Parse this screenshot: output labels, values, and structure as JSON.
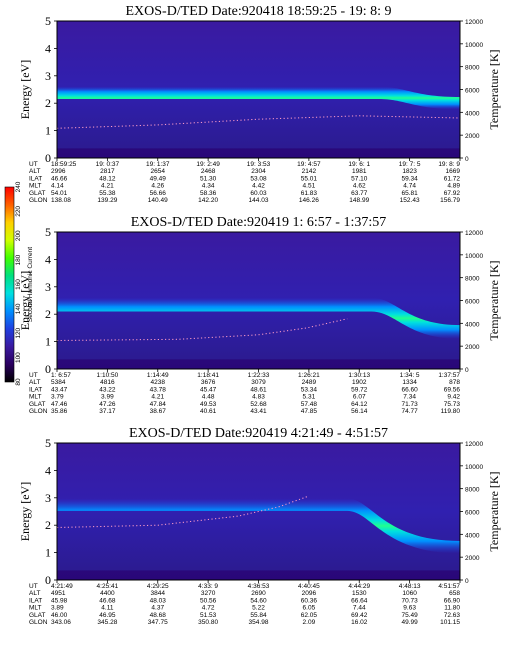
{
  "chart_data": [
    {
      "type": "heatmap",
      "title": "EXOS-D/TED   Date:920418   18:59:25 - 19: 8: 9",
      "ylabel": "Energy [eV]",
      "y2label": "Temperature [K]",
      "yticks": [
        "0",
        "1",
        "2",
        "3",
        "4",
        "5"
      ],
      "y2ticks": [
        "0",
        "2000",
        "4000",
        "6000",
        "8000",
        "10000",
        "12000"
      ],
      "ylim": [
        0,
        5
      ],
      "y2lim": [
        0,
        12000
      ],
      "row_labels": [
        "UT",
        "ALT",
        "ILAT",
        "MLT",
        "GLAT",
        "GLON"
      ],
      "columns": [
        [
          "18:59:25",
          "2996",
          "46.66",
          "4.14",
          "54.01",
          "138.08"
        ],
        [
          "19: 0:37",
          "2817",
          "48.12",
          "4.21",
          "55.38",
          "139.29"
        ],
        [
          "19: 1:37",
          "2654",
          "49.49",
          "4.26",
          "56.66",
          "140.49"
        ],
        [
          "19: 2:49",
          "2468",
          "51.30",
          "4.34",
          "58.36",
          "142.20"
        ],
        [
          "19: 3:53",
          "2304",
          "53.08",
          "4.42",
          "60.03",
          "144.03"
        ],
        [
          "19: 4:57",
          "2142",
          "55.01",
          "4.51",
          "61.83",
          "146.26"
        ],
        [
          "19: 6: 1",
          "1981",
          "57.10",
          "4.62",
          "63.77",
          "148.99"
        ],
        [
          "19: 7: 5",
          "1823",
          "59.34",
          "4.74",
          "65.81",
          "152.43"
        ],
        [
          "19: 8: 9",
          "1669",
          "61.72",
          "4.89",
          "67.92",
          "156.79"
        ]
      ],
      "band": {
        "center_ev": 2.38,
        "width_ev": 0.45,
        "drop_from": 0.8,
        "low_center_ev": 2.0
      },
      "temperature_curve": [
        [
          0.0,
          2600
        ],
        [
          0.25,
          2900
        ],
        [
          0.5,
          3400
        ],
        [
          0.75,
          3700
        ],
        [
          1.0,
          3500
        ]
      ]
    },
    {
      "type": "heatmap",
      "title": "EXOS-D/TED   Date:920419   1: 6:57 - 1:37:57",
      "ylabel": "Energy [eV]",
      "y2label": "Temperature [K]",
      "yticks": [
        "0",
        "1",
        "2",
        "3",
        "4",
        "5"
      ],
      "y2ticks": [
        "0",
        "2000",
        "4000",
        "6000",
        "8000",
        "10000",
        "12000"
      ],
      "ylim": [
        0,
        5
      ],
      "y2lim": [
        0,
        12000
      ],
      "row_labels": [
        "UT",
        "ALT",
        "ILAT",
        "MLT",
        "GLAT",
        "GLON"
      ],
      "columns": [
        [
          "1: 6:57",
          "5384",
          "43.47",
          "3.79",
          "47.46",
          "35.86"
        ],
        [
          "1:10:50",
          "4816",
          "43.22",
          "3.99",
          "47.26",
          "37.17"
        ],
        [
          "1:14:49",
          "4238",
          "43.78",
          "4.21",
          "47.84",
          "38.67"
        ],
        [
          "1:18:41",
          "3676",
          "45.47",
          "4.48",
          "49.53",
          "40.61"
        ],
        [
          "1:22:33",
          "3079",
          "48.61",
          "4.83",
          "52.68",
          "43.41"
        ],
        [
          "1:26:21",
          "2489",
          "53.34",
          "5.31",
          "57.48",
          "47.85"
        ],
        [
          "1:30:13",
          "1902",
          "59.72",
          "6.07",
          "64.12",
          "56.14"
        ],
        [
          "1:34: 5",
          "1334",
          "66.60",
          "7.34",
          "71.73",
          "74.77"
        ],
        [
          "1:37:57",
          "878",
          "69.56",
          "9.42",
          "75.73",
          "119.80"
        ]
      ],
      "band": {
        "center_ev": 2.35,
        "width_ev": 0.5,
        "drop_from": 0.78,
        "low_center_ev": 1.35
      },
      "temperature_curve": [
        [
          0.0,
          2500
        ],
        [
          0.3,
          2600
        ],
        [
          0.5,
          3000
        ],
        [
          0.62,
          3600
        ],
        [
          0.72,
          4400
        ]
      ]
    },
    {
      "type": "heatmap",
      "title": "EXOS-D/TED   Date:920419   4:21:49 - 4:51:57",
      "ylabel": "Energy [eV]",
      "y2label": "Temperature [K]",
      "yticks": [
        "0",
        "1",
        "2",
        "3",
        "4",
        "5"
      ],
      "y2ticks": [
        "0",
        "2000",
        "4000",
        "6000",
        "8000",
        "10000",
        "12000"
      ],
      "ylim": [
        0,
        5
      ],
      "y2lim": [
        0,
        12000
      ],
      "row_labels": [
        "UT",
        "ALT",
        "ILAT",
        "MLT",
        "GLAT",
        "GLON"
      ],
      "columns": [
        [
          "4:21:49",
          "4951",
          "45.98",
          "3.89",
          "46.00",
          "343.06"
        ],
        [
          "4:25:41",
          "4400",
          "46.68",
          "4.11",
          "46.95",
          "345.28"
        ],
        [
          "4:29:25",
          "3844",
          "48.03",
          "4.37",
          "48.68",
          "347.75"
        ],
        [
          "4:33: 9",
          "3270",
          "50.56",
          "4.72",
          "51.53",
          "350.80"
        ],
        [
          "4:36:53",
          "2690",
          "54.60",
          "5.22",
          "55.84",
          "354.98"
        ],
        [
          "4:40:45",
          "2096",
          "60.36",
          "6.05",
          "62.05",
          "2.09"
        ],
        [
          "4:44:29",
          "1530",
          "66.64",
          "7.44",
          "69.42",
          "16.02"
        ],
        [
          "4:48:13",
          "1060",
          "70.73",
          "9.63",
          "75.49",
          "49.99"
        ],
        [
          "4:51:57",
          "658",
          "66.90",
          "11.80",
          "72.63",
          "101.15"
        ]
      ],
      "band": {
        "center_ev": 2.75,
        "width_ev": 0.45,
        "drop_from": 0.72,
        "low_center_ev": 1.2
      },
      "temperature_curve": [
        [
          0.0,
          4600
        ],
        [
          0.25,
          4800
        ],
        [
          0.45,
          5600
        ],
        [
          0.55,
          6400
        ],
        [
          0.62,
          7300
        ]
      ]
    }
  ],
  "colorbar": {
    "label": "Second Harmonic Current",
    "ticks": [
      "80",
      "100",
      "120",
      "140",
      "160",
      "180",
      "200",
      "220",
      "240"
    ],
    "colors": [
      "#000000",
      "#2a0060",
      "#3a1aa0",
      "#2040e0",
      "#0090ff",
      "#00e0e0",
      "#00e080",
      "#40ff00",
      "#d0ff00",
      "#ffd000",
      "#ff6000",
      "#ff0000"
    ]
  }
}
